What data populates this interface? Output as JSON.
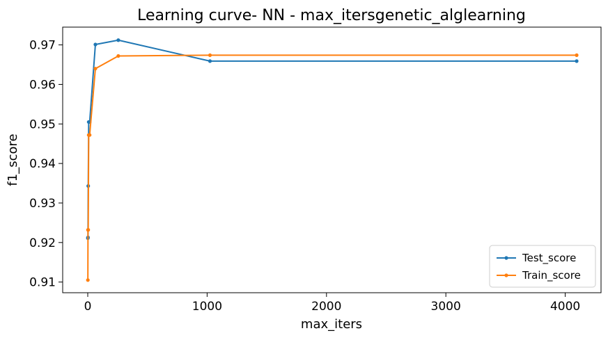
{
  "chart_data": {
    "type": "line",
    "title": "Learning curve- NN - max_itersgenetic_alglearning",
    "xlabel": "max_iters",
    "ylabel": "f1_score",
    "xlim": [
      -210,
      4300
    ],
    "ylim": [
      0.9073,
      0.9745
    ],
    "xticks": [
      0,
      1000,
      2000,
      3000,
      4000
    ],
    "xtick_labels": [
      "0",
      "1000",
      "2000",
      "3000",
      "4000"
    ],
    "yticks": [
      0.91,
      0.92,
      0.93,
      0.94,
      0.95,
      0.96,
      0.97
    ],
    "ytick_labels": [
      "0.91",
      "0.92",
      "0.93",
      "0.94",
      "0.95",
      "0.96",
      "0.97"
    ],
    "grid": false,
    "legend_position": "lower-right",
    "series": [
      {
        "name": "Test_score",
        "color": "#1f77b4",
        "marker": "circle",
        "x": [
          1,
          2,
          4,
          8,
          16,
          64,
          256,
          1024,
          4096
        ],
        "y": [
          0.9211,
          0.9213,
          0.9343,
          0.9505,
          0.9505,
          0.9701,
          0.9712,
          0.9659,
          0.9659
        ]
      },
      {
        "name": "Train_score",
        "color": "#ff7f0e",
        "marker": "circle",
        "x": [
          1,
          2,
          4,
          8,
          16,
          64,
          256,
          1024,
          4096
        ],
        "y": [
          0.9105,
          0.9232,
          0.9232,
          0.9472,
          0.9472,
          0.964,
          0.9672,
          0.9674,
          0.9674
        ]
      }
    ]
  }
}
